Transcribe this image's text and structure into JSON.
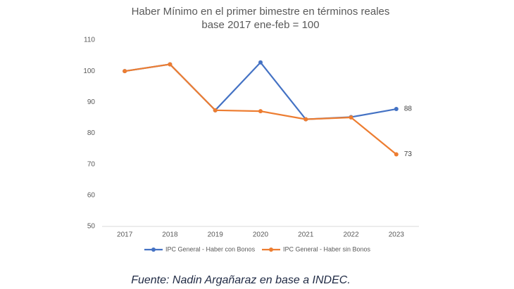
{
  "chart_data": {
    "type": "line",
    "title": "Haber Mínimo en el primer bimestre en términos reales",
    "subtitle": "base 2017 ene-feb = 100",
    "source": "Fuente: Nadin Argañaraz en base a INDEC.",
    "categories": [
      "2017",
      "2018",
      "2019",
      "2020",
      "2021",
      "2022",
      "2023"
    ],
    "series": [
      {
        "name": "IPC General - Haber con Bonos",
        "color": "#4472c4",
        "values": [
          100,
          102.2,
          87.4,
          102.8,
          84.5,
          85.2,
          87.8
        ],
        "value_labels": [
          null,
          null,
          null,
          null,
          null,
          null,
          "88"
        ]
      },
      {
        "name": "IPC General - Haber sin Bonos",
        "color": "#ed7d31",
        "values": [
          100,
          102.2,
          87.4,
          87.1,
          84.5,
          85.1,
          73.2
        ],
        "value_labels": [
          null,
          null,
          null,
          null,
          null,
          null,
          "73"
        ]
      }
    ],
    "ylim": [
      50,
      110
    ],
    "yticks": [
      50,
      60,
      70,
      80,
      90,
      100,
      110
    ],
    "grid": false,
    "legend": "bottom"
  }
}
